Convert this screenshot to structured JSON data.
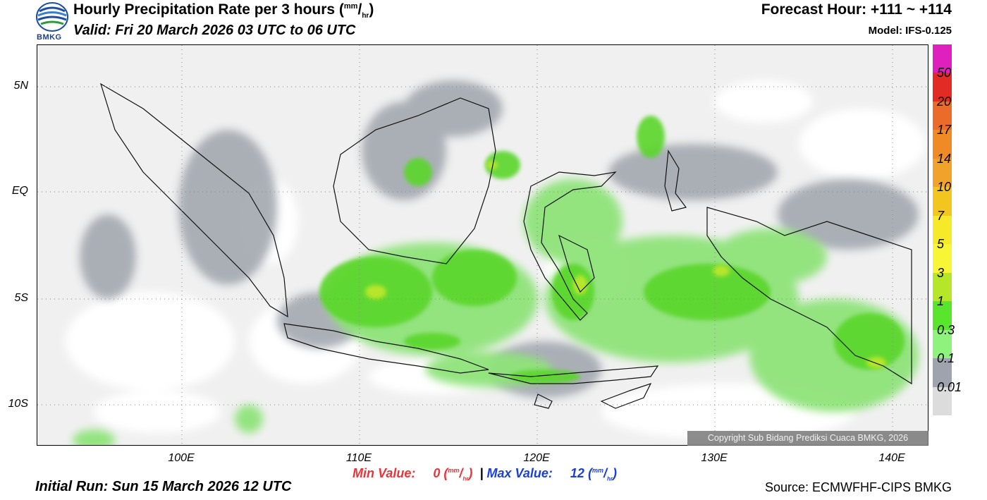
{
  "header": {
    "logo_text": "BMKG",
    "title_main": "Hourly Precipitation Rate per 3 hours (",
    "title_unit_top": "mm",
    "title_unit_bottom": "hr",
    "title_close": ")",
    "valid": "Valid: Fri 20 March 2026 03 UTC to 06 UTC",
    "forecast_hour": "Forecast Hour: +111 ~ +114",
    "model": "Model: IFS-0.125"
  },
  "map": {
    "lat_labels": [
      "5N",
      "EQ",
      "5S",
      "10S"
    ],
    "lon_labels": [
      "100E",
      "110E",
      "120E",
      "130E",
      "140E"
    ],
    "copyright": "Copyright Sub Bidang Prediksi Cuaca BMKG, 2026"
  },
  "legend": {
    "labels": [
      "50",
      "20",
      "17",
      "14",
      "10",
      "7",
      "5",
      "3",
      "1",
      "0.3",
      "0.1",
      "0.01"
    ],
    "colors": [
      "#e01fbf",
      "#e32b26",
      "#ea6b2a",
      "#f08a26",
      "#f0a22a",
      "#f2c51f",
      "#f5e92a",
      "#f7f535",
      "#b6e62a",
      "#59e52b",
      "#8ff27c",
      "#9ea3ad",
      "#dcdcdc"
    ]
  },
  "footer": {
    "min_label": "Min Value:",
    "min_value": "0",
    "separator": "|",
    "max_label": "Max Value:",
    "max_value": "12",
    "unit_top": "mm",
    "unit_bottom": "hr",
    "initial_run": "Initial Run: Sun 15 March 2026 12 UTC",
    "source": "Source: ECMWFHF-CIPS BMKG"
  }
}
